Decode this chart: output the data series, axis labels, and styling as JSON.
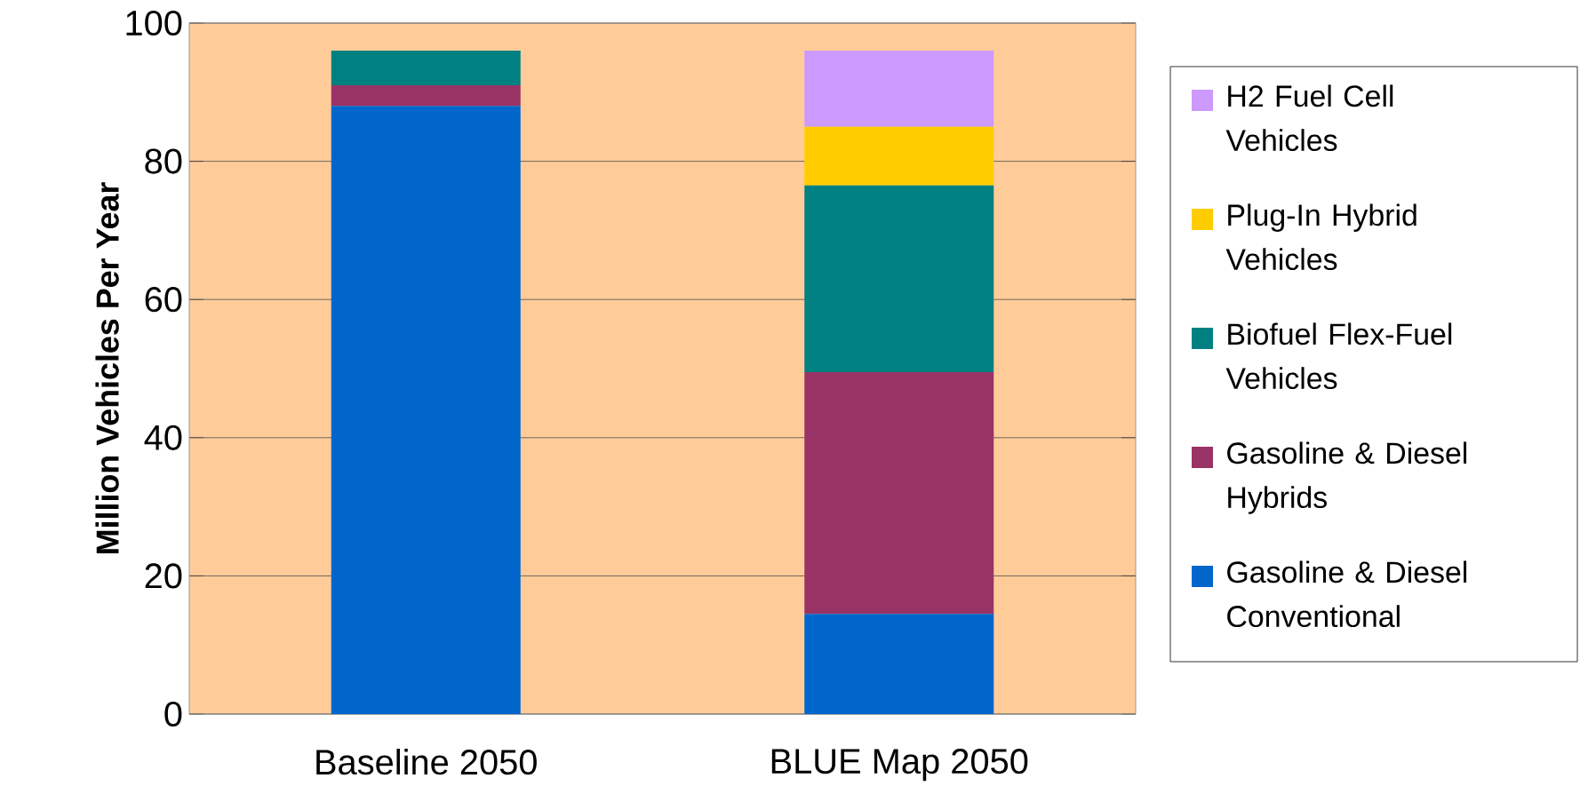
{
  "chart_data": {
    "type": "bar",
    "stacked": true,
    "ylabel": "Million Vehicles Per Year",
    "categories": [
      "Baseline 2050",
      "BLUE Map 2050"
    ],
    "series": [
      {
        "name": "Gasoline & Diesel Conventional",
        "color": "#0066cc",
        "values": [
          88,
          14.5
        ]
      },
      {
        "name": "Gasoline & Diesel Hybrids",
        "color": "#993366",
        "values": [
          3,
          35
        ]
      },
      {
        "name": "Biofuel Flex-Fuel Vehicles",
        "color": "#008080",
        "values": [
          5,
          27
        ]
      },
      {
        "name": "Plug-In Hybrid Vehicles",
        "color": "#ffcc00",
        "values": [
          0,
          8.5
        ]
      },
      {
        "name": "H2 Fuel Cell Vehicles",
        "color": "#cc99ff",
        "values": [
          0,
          11
        ]
      }
    ],
    "ylim": [
      0,
      100
    ],
    "yticks": [
      0,
      20,
      40,
      60,
      80,
      100
    ],
    "grid": "y",
    "legend": "right"
  }
}
